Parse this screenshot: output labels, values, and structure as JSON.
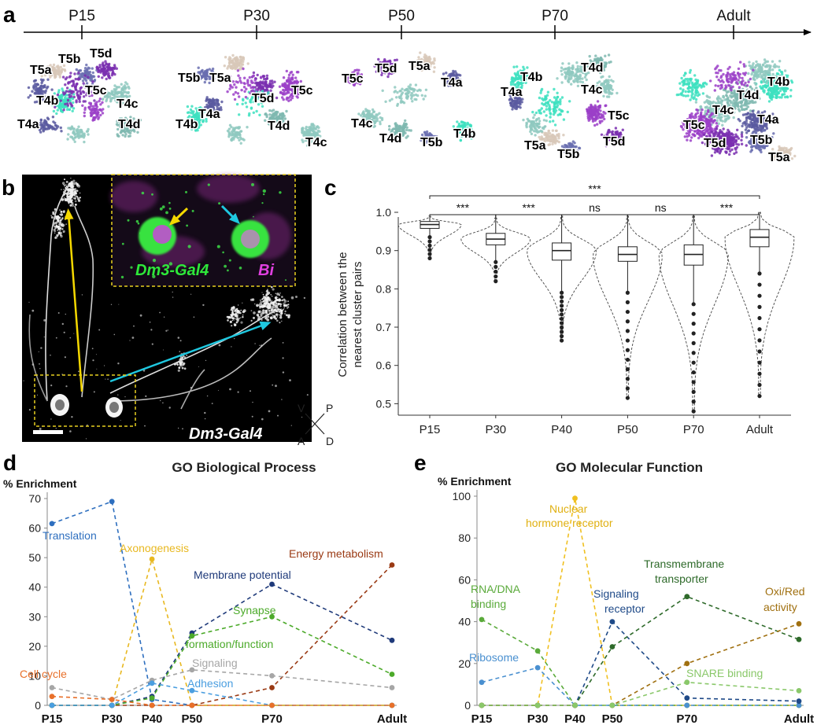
{
  "panel_a": {
    "label": "a",
    "stages": [
      "P15",
      "P30",
      "P50",
      "P70",
      "Adult"
    ],
    "clusters": {
      "p15": [
        "T5d",
        "T5b",
        "T5a",
        "T4b",
        "T5c",
        "T4c",
        "T4a",
        "T4d"
      ],
      "p30": [
        "T5b",
        "T5a",
        "T5d",
        "T5c",
        "T4a",
        "T4b",
        "T4d",
        "T4c"
      ],
      "p50": [
        "T5c",
        "T5d",
        "T5a",
        "T4a",
        "T4c",
        "T4d",
        "T5b",
        "T4b"
      ],
      "p70": [
        "T4b",
        "T4d",
        "T4a",
        "T4c",
        "T5c",
        "T5a",
        "T5d",
        "T5b"
      ],
      "adult": [
        "T4b",
        "T4d",
        "T4c",
        "T5c",
        "T4a",
        "T5d",
        "T5b",
        "T5a"
      ]
    },
    "colors": {
      "t4a": "#5a5aa0",
      "t4b": "#3de0c0",
      "t4c": "#8fc9bf",
      "t4d": "#7fb8b0",
      "t5a": "#d8c8b8",
      "t5b": "#6a6fb0",
      "t5c": "#9b3fc8",
      "t5d": "#7a2fb0"
    }
  },
  "panel_b": {
    "label": "b",
    "inset_left": "Dm3-Gal4",
    "inset_right": "Bi",
    "main_label": "Dm3-Gal4",
    "compass": {
      "v": "V",
      "p": "P",
      "a": "A",
      "d": "D"
    }
  },
  "panel_c": {
    "label": "c",
    "chart_data": {
      "type": "box",
      "ylabel": "Correlation between the nearest cluster pairs",
      "categories": [
        "P15",
        "P30",
        "P40",
        "P50",
        "P70",
        "Adult"
      ],
      "ylim": [
        0.47,
        1.0
      ],
      "yticks": [
        0.5,
        0.6,
        0.7,
        0.8,
        0.9,
        1.0
      ],
      "boxes": [
        {
          "q1": 0.958,
          "median": 0.968,
          "q3": 0.976,
          "whisker_low": 0.935,
          "whisker_high": 0.99,
          "min": 0.88,
          "max": 0.99
        },
        {
          "q1": 0.915,
          "median": 0.93,
          "q3": 0.945,
          "whisker_low": 0.87,
          "whisker_high": 0.985,
          "min": 0.82,
          "max": 0.985
        },
        {
          "q1": 0.875,
          "median": 0.9,
          "q3": 0.92,
          "whisker_low": 0.79,
          "whisker_high": 0.99,
          "min": 0.665,
          "max": 0.99
        },
        {
          "q1": 0.872,
          "median": 0.89,
          "q3": 0.91,
          "whisker_low": 0.79,
          "whisker_high": 0.99,
          "min": 0.515,
          "max": 0.99
        },
        {
          "q1": 0.862,
          "median": 0.89,
          "q3": 0.915,
          "whisker_low": 0.76,
          "whisker_high": 0.99,
          "min": 0.48,
          "max": 0.99
        },
        {
          "q1": 0.91,
          "median": 0.935,
          "q3": 0.955,
          "whisker_low": 0.84,
          "whisker_high": 1.0,
          "min": 0.52,
          "max": 1.0
        }
      ],
      "comparisons": [
        {
          "from": "P15",
          "to": "Adult",
          "label": "***"
        },
        {
          "from": "P15",
          "to": "P30",
          "label": "***"
        },
        {
          "from": "P30",
          "to": "P40",
          "label": "***"
        },
        {
          "from": "P40",
          "to": "P50",
          "label": "ns"
        },
        {
          "from": "P50",
          "to": "P70",
          "label": "ns"
        },
        {
          "from": "P70",
          "to": "Adult",
          "label": "***"
        }
      ]
    }
  },
  "panel_d": {
    "label": "d",
    "chart_data": {
      "type": "line",
      "title": "GO Biological Process",
      "ylabel": "% Enrichment",
      "categories": [
        "P15",
        "P30",
        "P40",
        "P50",
        "P70",
        "Adult"
      ],
      "x": [
        15,
        30,
        40,
        50,
        70,
        100
      ],
      "ylim": [
        0,
        70
      ],
      "yticks": [
        0,
        10,
        20,
        30,
        40,
        50,
        60,
        70
      ],
      "series": [
        {
          "name": "Translation",
          "color": "#2e6fbf",
          "values": [
            61.5,
            69,
            2,
            0,
            0,
            0
          ]
        },
        {
          "name": "Axonogenesis",
          "color": "#e8b820",
          "values": [
            0,
            0,
            49.5,
            0,
            0,
            0
          ]
        },
        {
          "name": "Energy metabolism",
          "color": "#9a3a14",
          "values": [
            0,
            0,
            0,
            0,
            6,
            47.5
          ]
        },
        {
          "name": "Membrane potential",
          "color": "#1f3a7a",
          "values": [
            0,
            0,
            3,
            24.5,
            41,
            22
          ]
        },
        {
          "name": "Synapse formation/function",
          "color": "#4caa2a",
          "values": [
            0,
            0,
            2.5,
            23.5,
            30,
            10.5
          ]
        },
        {
          "name": "Signaling",
          "color": "#a6a6a6",
          "values": [
            6,
            2,
            8.5,
            12,
            10,
            6
          ]
        },
        {
          "name": "Adhesion",
          "color": "#4a9ee0",
          "values": [
            0,
            0,
            7.5,
            5,
            0,
            0
          ]
        },
        {
          "name": "Cell cycle",
          "color": "#e8702a",
          "values": [
            3,
            2,
            0,
            0,
            0,
            0
          ]
        }
      ],
      "annotations": {
        "translation": "Translation",
        "axonogenesis": "Axonogenesis",
        "energy": "Energy metabolism",
        "membrane": "Membrane potential",
        "synapse_1": "Synapse",
        "synapse_2": "formation/function",
        "signaling": "Signaling",
        "adhesion": "Adhesion",
        "cellcycle": "Cell cycle"
      }
    }
  },
  "panel_e": {
    "label": "e",
    "chart_data": {
      "type": "line",
      "title": "GO Molecular Function",
      "ylabel": "% Enrichment",
      "categories": [
        "P15",
        "P30",
        "P40",
        "P50",
        "P70",
        "Adult"
      ],
      "x": [
        15,
        30,
        40,
        50,
        70,
        100
      ],
      "ylim": [
        0,
        100
      ],
      "yticks": [
        0,
        20,
        40,
        60,
        80,
        100
      ],
      "series": [
        {
          "name": "Nuclear hormone receptor",
          "color": "#f0c020",
          "values": [
            0,
            0,
            99,
            0,
            0,
            0
          ]
        },
        {
          "name": "RNA/DNA binding",
          "color": "#5aaa3a",
          "values": [
            41,
            26,
            0,
            0,
            0,
            0
          ]
        },
        {
          "name": "Ribosome",
          "color": "#4a90d0",
          "values": [
            11,
            18,
            0,
            0,
            0,
            0
          ]
        },
        {
          "name": "Signaling receptor",
          "color": "#1f4a88",
          "values": [
            0,
            0,
            0,
            40,
            3.5,
            2
          ]
        },
        {
          "name": "Transmembrane transporter",
          "color": "#2e6a2a",
          "values": [
            0,
            0,
            0,
            28,
            52,
            31.5
          ]
        },
        {
          "name": "Oxi/Red activity",
          "color": "#a07010",
          "values": [
            0,
            0,
            0,
            0,
            20,
            39
          ]
        },
        {
          "name": "SNARE binding",
          "color": "#8ac86a",
          "values": [
            0,
            0,
            0,
            0,
            11,
            7
          ]
        }
      ],
      "annotations": {
        "nuclear_1": "Nuclear",
        "nuclear_2": "hormone receptor",
        "rna_1": "RNA/DNA",
        "rna_2": "binding",
        "ribosome": "Ribosome",
        "signaling_1": "Signaling",
        "signaling_2": "receptor",
        "trans_1": "Transmembrane",
        "trans_2": "transporter",
        "oxi_1": "Oxi/Red",
        "oxi_2": "activity",
        "snare": "SNARE binding"
      }
    }
  }
}
